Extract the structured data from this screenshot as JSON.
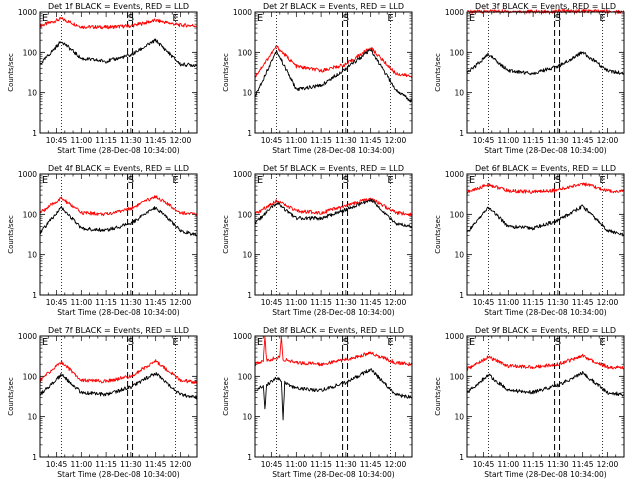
{
  "colors": {
    "events": "#000000",
    "lld": "#ff0000",
    "axes": "#000000"
  },
  "chart_data": [
    {
      "type": "line",
      "title": "Det 1f BLACK = Events, RED = LLD",
      "xlabel": "Start Time (28-Dec-08 10:34:00)",
      "ylabel": "Counts/sec",
      "y_scale": "log",
      "ylim": [
        1,
        1000
      ],
      "xlim": [
        "10:35",
        "12:10"
      ],
      "x_ticks": [
        "10:45",
        "11:00",
        "11:15",
        "11:30",
        "11:45",
        "12:00"
      ],
      "y_ticks": [
        "1",
        "10",
        "100",
        "1000"
      ],
      "markers": [
        {
          "label": "E",
          "x": "10:35"
        },
        {
          "label": "S",
          "x": "11:30"
        },
        {
          "label": "E",
          "x": "11:57"
        }
      ],
      "dotted_lines": [
        "10:48",
        "11:57"
      ],
      "dashed_lines": [
        "11:28",
        "11:31"
      ],
      "series": [
        {
          "color": "red",
          "x": [
            "10:35",
            "10:48",
            "11:00",
            "11:15",
            "11:30",
            "11:45",
            "12:00",
            "12:10"
          ],
          "values": [
            450,
            680,
            430,
            420,
            450,
            620,
            470,
            460
          ]
        },
        {
          "color": "black",
          "x": [
            "10:35",
            "10:48",
            "11:00",
            "11:15",
            "11:30",
            "11:45",
            "12:00",
            "12:10"
          ],
          "values": [
            50,
            190,
            70,
            60,
            85,
            200,
            50,
            48
          ]
        }
      ]
    },
    {
      "type": "line",
      "title": "Det 2f BLACK = Events, RED = LLD",
      "xlabel": "Start Time (28-Dec-08 10:34:00)",
      "ylabel": "Counts/sec",
      "y_scale": "log",
      "ylim": [
        1,
        1000
      ],
      "xlim": [
        "10:35",
        "12:10"
      ],
      "x_ticks": [
        "10:45",
        "11:00",
        "11:15",
        "11:30",
        "11:45",
        "12:00"
      ],
      "y_ticks": [
        "1",
        "10",
        "100",
        "1000"
      ],
      "markers": [
        {
          "label": "E",
          "x": "10:35"
        },
        {
          "label": "S",
          "x": "11:30"
        },
        {
          "label": "E",
          "x": "11:57"
        }
      ],
      "dotted_lines": [
        "10:48",
        "11:57"
      ],
      "dashed_lines": [
        "11:28",
        "11:31"
      ],
      "series": [
        {
          "color": "red",
          "x": [
            "10:35",
            "10:48",
            "11:00",
            "11:15",
            "11:30",
            "11:45",
            "12:00",
            "12:10"
          ],
          "values": [
            25,
            140,
            45,
            35,
            50,
            130,
            30,
            25
          ]
        },
        {
          "color": "black",
          "x": [
            "10:35",
            "10:48",
            "11:00",
            "11:15",
            "11:30",
            "11:45",
            "12:00",
            "12:10"
          ],
          "values": [
            8,
            110,
            12,
            15,
            40,
            115,
            12,
            6
          ]
        }
      ]
    },
    {
      "type": "line",
      "title": "Det 3f BLACK = Events, RED = LLD",
      "xlabel": "Start Time (28-Dec-08 10:34:00)",
      "ylabel": "Counts/sec",
      "y_scale": "log",
      "ylim": [
        1,
        1000
      ],
      "xlim": [
        "10:35",
        "12:10"
      ],
      "x_ticks": [
        "10:45",
        "11:00",
        "11:15",
        "11:30",
        "11:45",
        "12:00"
      ],
      "y_ticks": [
        "1",
        "10",
        "100",
        "1000"
      ],
      "markers": [
        {
          "label": "E",
          "x": "10:35"
        },
        {
          "label": "S",
          "x": "11:30"
        },
        {
          "label": "E",
          "x": "11:57"
        }
      ],
      "dotted_lines": [
        "10:48",
        "11:57"
      ],
      "dashed_lines": [
        "11:28",
        "11:31"
      ],
      "series": [
        {
          "color": "red",
          "x": [
            "10:35",
            "10:48",
            "11:00",
            "11:15",
            "11:30",
            "11:45",
            "12:00",
            "12:10"
          ],
          "values": [
            1000,
            1050,
            1030,
            1020,
            1040,
            1060,
            1030,
            1010
          ]
        },
        {
          "color": "black",
          "x": [
            "10:35",
            "10:48",
            "11:00",
            "11:15",
            "11:30",
            "11:45",
            "12:00",
            "12:10"
          ],
          "values": [
            30,
            90,
            35,
            30,
            45,
            100,
            35,
            30
          ]
        }
      ]
    },
    {
      "type": "line",
      "title": "Det 4f BLACK = Events, RED = LLD",
      "xlabel": "Start Time (28-Dec-08 10:34:00)",
      "ylabel": "Counts/sec",
      "y_scale": "log",
      "ylim": [
        1,
        1000
      ],
      "xlim": [
        "10:35",
        "12:10"
      ],
      "x_ticks": [
        "10:45",
        "11:00",
        "11:15",
        "11:30",
        "11:45",
        "12:00"
      ],
      "y_ticks": [
        "1",
        "10",
        "100",
        "1000"
      ],
      "markers": [
        {
          "label": "E",
          "x": "10:35"
        },
        {
          "label": "S",
          "x": "11:30"
        },
        {
          "label": "E",
          "x": "11:57"
        }
      ],
      "dotted_lines": [
        "10:48",
        "11:57"
      ],
      "dashed_lines": [
        "11:28",
        "11:31"
      ],
      "series": [
        {
          "color": "red",
          "x": [
            "10:35",
            "10:48",
            "11:00",
            "11:15",
            "11:30",
            "11:45",
            "12:00",
            "12:10"
          ],
          "values": [
            110,
            250,
            110,
            100,
            140,
            280,
            110,
            100
          ]
        },
        {
          "color": "black",
          "x": [
            "10:35",
            "10:48",
            "11:00",
            "11:15",
            "11:30",
            "11:45",
            "12:00",
            "12:10"
          ],
          "values": [
            35,
            150,
            45,
            40,
            60,
            150,
            40,
            30
          ]
        }
      ]
    },
    {
      "type": "line",
      "title": "Det 5f BLACK = Events, RED = LLD",
      "xlabel": "Start Time (28-Dec-08 10:34:00)",
      "ylabel": "Counts/sec",
      "y_scale": "log",
      "ylim": [
        1,
        1000
      ],
      "xlim": [
        "10:35",
        "12:10"
      ],
      "x_ticks": [
        "10:45",
        "11:00",
        "11:15",
        "11:30",
        "11:45",
        "12:00"
      ],
      "y_ticks": [
        "1",
        "10",
        "100",
        "1000"
      ],
      "markers": [
        {
          "label": "E",
          "x": "10:35"
        },
        {
          "label": "S",
          "x": "11:30"
        },
        {
          "label": "E",
          "x": "11:57"
        }
      ],
      "dotted_lines": [
        "10:48",
        "11:57"
      ],
      "dashed_lines": [
        "11:28",
        "11:31"
      ],
      "series": [
        {
          "color": "red",
          "x": [
            "10:35",
            "10:48",
            "11:00",
            "11:15",
            "11:30",
            "11:45",
            "12:00",
            "12:10"
          ],
          "values": [
            100,
            220,
            120,
            110,
            160,
            250,
            110,
            100
          ]
        },
        {
          "color": "black",
          "x": [
            "10:35",
            "10:48",
            "11:00",
            "11:15",
            "11:30",
            "11:45",
            "12:00",
            "12:10"
          ],
          "values": [
            60,
            190,
            80,
            80,
            130,
            230,
            60,
            50
          ]
        }
      ]
    },
    {
      "type": "line",
      "title": "Det 6f BLACK = Events, RED = LLD",
      "xlabel": "Start Time (28-Dec-08 10:34:00)",
      "ylabel": "Counts/sec",
      "y_scale": "log",
      "ylim": [
        1,
        1000
      ],
      "xlim": [
        "10:35",
        "12:10"
      ],
      "x_ticks": [
        "10:45",
        "11:00",
        "11:15",
        "11:30",
        "11:45",
        "12:00"
      ],
      "y_ticks": [
        "1",
        "10",
        "100",
        "1000"
      ],
      "markers": [
        {
          "label": "E",
          "x": "10:35"
        },
        {
          "label": "S",
          "x": "11:30"
        },
        {
          "label": "E",
          "x": "11:57"
        }
      ],
      "dotted_lines": [
        "10:48",
        "11:57"
      ],
      "dashed_lines": [
        "11:28",
        "11:31"
      ],
      "series": [
        {
          "color": "red",
          "x": [
            "10:35",
            "10:48",
            "11:00",
            "11:15",
            "11:30",
            "11:45",
            "12:00",
            "12:10"
          ],
          "values": [
            350,
            550,
            380,
            360,
            400,
            580,
            380,
            370
          ]
        },
        {
          "color": "black",
          "x": [
            "10:35",
            "10:48",
            "11:00",
            "11:15",
            "11:30",
            "11:45",
            "12:00",
            "12:10"
          ],
          "values": [
            35,
            150,
            50,
            45,
            70,
            160,
            40,
            30
          ]
        }
      ]
    },
    {
      "type": "line",
      "title": "Det 7f BLACK = Events, RED = LLD",
      "xlabel": "Start Time (28-Dec-08 10:34:00)",
      "ylabel": "Counts/sec",
      "y_scale": "log",
      "ylim": [
        1,
        1000
      ],
      "xlim": [
        "10:35",
        "12:10"
      ],
      "x_ticks": [
        "10:45",
        "11:00",
        "11:15",
        "11:30",
        "11:45",
        "12:00"
      ],
      "y_ticks": [
        "1",
        "10",
        "100",
        "1000"
      ],
      "markers": [
        {
          "label": "E",
          "x": "10:35"
        },
        {
          "label": "S",
          "x": "11:30"
        },
        {
          "label": "E",
          "x": "11:57"
        }
      ],
      "dotted_lines": [
        "10:48",
        "11:57"
      ],
      "dashed_lines": [
        "11:28",
        "11:31"
      ],
      "series": [
        {
          "color": "red",
          "x": [
            "10:35",
            "10:48",
            "11:00",
            "11:15",
            "11:30",
            "11:45",
            "12:00",
            "12:10"
          ],
          "values": [
            80,
            230,
            80,
            75,
            100,
            240,
            80,
            70
          ]
        },
        {
          "color": "black",
          "x": [
            "10:35",
            "10:48",
            "11:00",
            "11:15",
            "11:30",
            "11:45",
            "12:00",
            "12:10"
          ],
          "values": [
            35,
            110,
            40,
            35,
            55,
            120,
            35,
            30
          ]
        }
      ]
    },
    {
      "type": "line",
      "title": "Det 8f BLACK = Events, RED = LLD",
      "xlabel": "Start Time (28-Dec-08 10:34:00)",
      "ylabel": "Counts/sec",
      "y_scale": "log",
      "ylim": [
        1,
        1000
      ],
      "xlim": [
        "10:35",
        "12:10"
      ],
      "x_ticks": [
        "10:45",
        "11:00",
        "11:15",
        "11:30",
        "11:45",
        "12:00"
      ],
      "y_ticks": [
        "1",
        "10",
        "100",
        "1000"
      ],
      "markers": [
        {
          "label": "E",
          "x": "10:35"
        },
        {
          "label": "S",
          "x": "11:30"
        },
        {
          "label": "E",
          "x": "11:57"
        }
      ],
      "dotted_lines": [
        "10:48",
        "11:57"
      ],
      "dashed_lines": [
        "11:28",
        "11:31"
      ],
      "series": [
        {
          "color": "red",
          "x": [
            "10:35",
            "10:40",
            "10:41",
            "10:42",
            "10:50",
            "10:51",
            "10:52",
            "11:00",
            "11:15",
            "11:30",
            "11:45",
            "12:00",
            "12:10"
          ],
          "values": [
            200,
            250,
            1000,
            250,
            300,
            1000,
            260,
            220,
            200,
            260,
            380,
            220,
            200
          ]
        },
        {
          "color": "black",
          "x": [
            "10:35",
            "10:40",
            "10:41",
            "10:42",
            "10:48",
            "10:51",
            "10:52",
            "10:53",
            "11:00",
            "11:15",
            "11:30",
            "11:45",
            "12:00",
            "12:10"
          ],
          "values": [
            40,
            60,
            15,
            60,
            90,
            80,
            8,
            70,
            50,
            45,
            70,
            150,
            35,
            30
          ]
        }
      ]
    },
    {
      "type": "line",
      "title": "Det 9f BLACK = Events, RED = LLD",
      "xlabel": "Start Time (28-Dec-08 10:34:00)",
      "ylabel": "Counts/sec",
      "y_scale": "log",
      "ylim": [
        1,
        1000
      ],
      "xlim": [
        "10:35",
        "12:10"
      ],
      "x_ticks": [
        "10:45",
        "11:00",
        "11:15",
        "11:30",
        "11:45",
        "12:00"
      ],
      "y_ticks": [
        "1",
        "10",
        "100",
        "1000"
      ],
      "markers": [
        {
          "label": "E",
          "x": "10:35"
        },
        {
          "label": "S",
          "x": "11:30"
        },
        {
          "label": "E",
          "x": "11:57"
        }
      ],
      "dotted_lines": [
        "10:48",
        "11:57"
      ],
      "dashed_lines": [
        "11:28",
        "11:31"
      ],
      "series": [
        {
          "color": "red",
          "x": [
            "10:35",
            "10:48",
            "11:00",
            "11:15",
            "11:30",
            "11:45",
            "12:00",
            "12:10"
          ],
          "values": [
            150,
            300,
            180,
            170,
            200,
            320,
            170,
            160
          ]
        },
        {
          "color": "black",
          "x": [
            "10:35",
            "10:48",
            "11:00",
            "11:15",
            "11:30",
            "11:45",
            "12:00",
            "12:10"
          ],
          "values": [
            40,
            110,
            45,
            40,
            60,
            120,
            40,
            35
          ]
        }
      ]
    }
  ]
}
